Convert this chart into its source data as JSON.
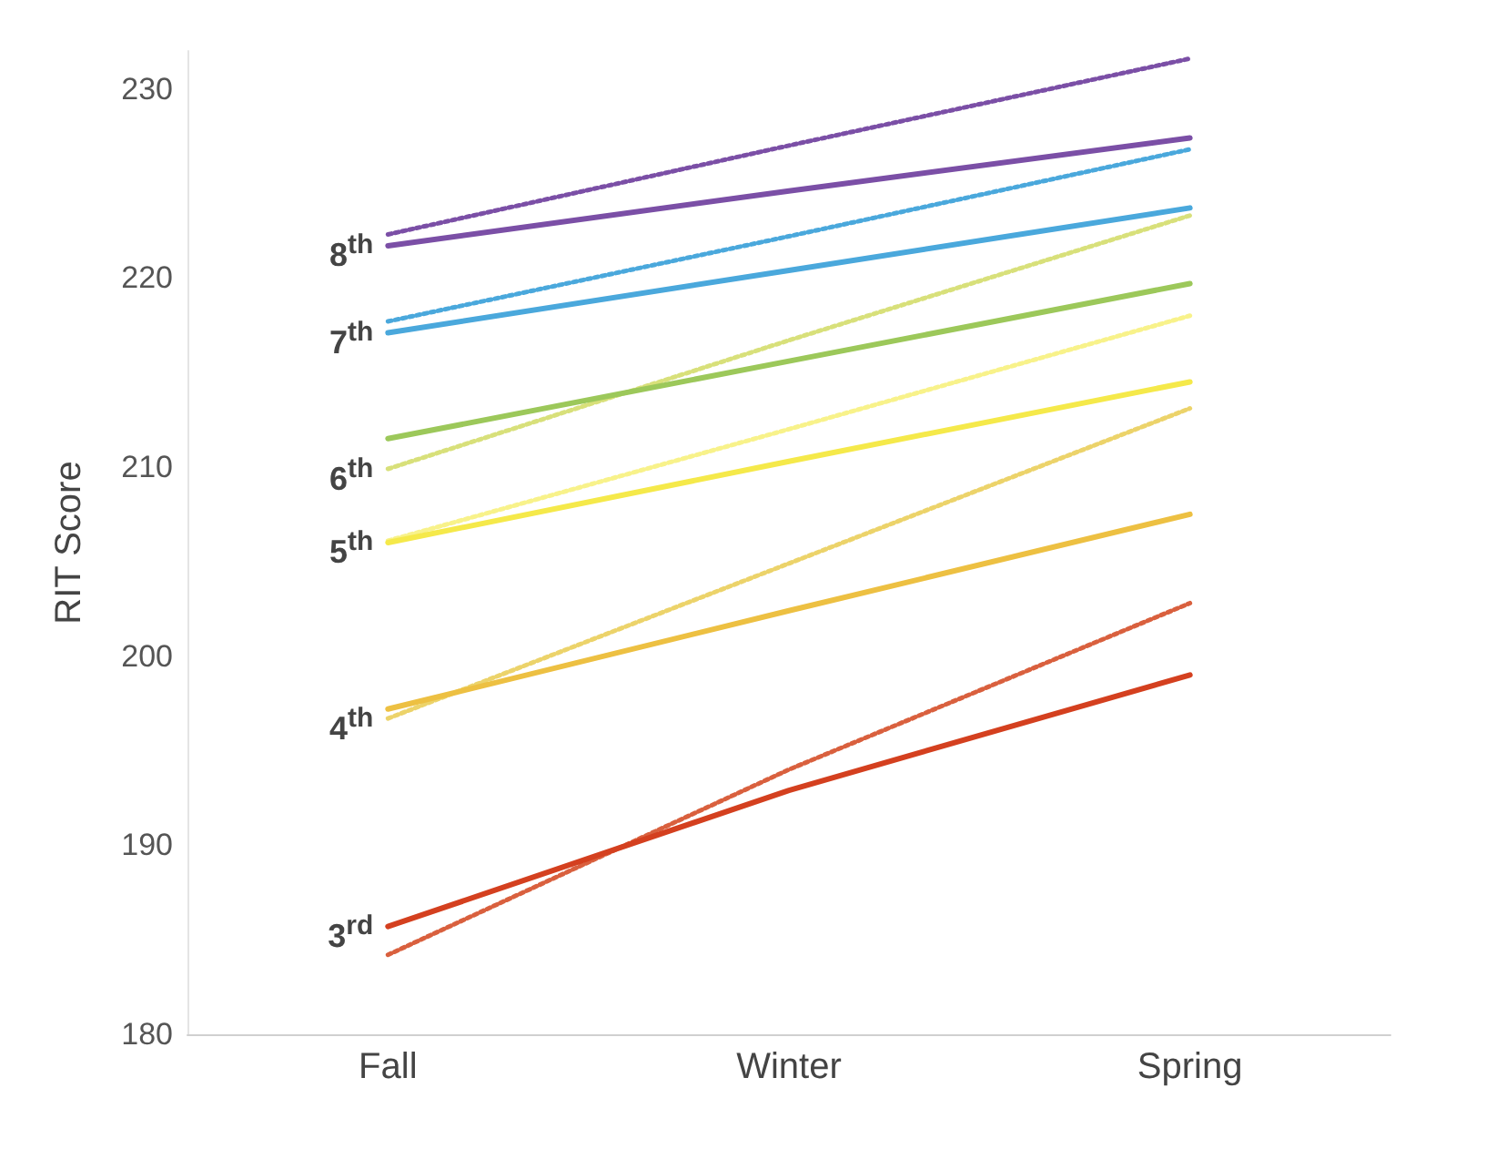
{
  "chart_data": {
    "type": "line",
    "ylabel": "RIT Score",
    "categories": [
      "Fall",
      "Winter",
      "Spring"
    ],
    "ylim": [
      180,
      232
    ],
    "yticks": [
      180,
      190,
      200,
      210,
      220,
      230
    ],
    "grid": false,
    "marker": "none",
    "series": [
      {
        "color": "#7b4fa6",
        "line_style": "dotted",
        "values": [
          222.3,
          227.0,
          231.6
        ]
      },
      {
        "color": "#7b4fa6",
        "line_style": "solid",
        "values": [
          221.7,
          224.6,
          227.4
        ]
      },
      {
        "color": "#4aa8dc",
        "line_style": "dotted",
        "values": [
          217.7,
          222.2,
          226.8
        ]
      },
      {
        "color": "#4aa8dc",
        "line_style": "solid",
        "values": [
          217.1,
          220.4,
          223.7
        ]
      },
      {
        "color": "#d8e07a",
        "line_style": "dotted",
        "values": [
          209.9,
          216.7,
          223.3
        ]
      },
      {
        "color": "#9cc85a",
        "line_style": "solid",
        "values": [
          211.5,
          215.6,
          219.7
        ]
      },
      {
        "color": "#f8f28a",
        "line_style": "dotted",
        "values": [
          206.1,
          212.0,
          218.0
        ]
      },
      {
        "color": "#f5e94a",
        "line_style": "solid",
        "values": [
          206.0,
          210.3,
          214.5
        ]
      },
      {
        "color": "#ecd36a",
        "line_style": "dotted",
        "values": [
          196.7,
          204.9,
          213.1
        ]
      },
      {
        "color": "#edc042",
        "line_style": "solid",
        "values": [
          197.2,
          202.4,
          207.5
        ]
      },
      {
        "color": "#d9603e",
        "line_style": "dotted",
        "values": [
          184.2,
          194.0,
          202.8
        ]
      },
      {
        "color": "#d4401f",
        "line_style": "solid",
        "values": [
          185.7,
          192.9,
          199.0
        ]
      }
    ],
    "annotations": [
      {
        "text": "8$^{th}$",
        "x": "Fall",
        "y": 221.7
      },
      {
        "text": "7$^{th}$",
        "x": "Fall",
        "y": 217.1
      },
      {
        "text": "6$^{th}$",
        "x": "Fall",
        "y": 209.9
      },
      {
        "text": "5$^{th}$",
        "x": "Fall",
        "y": 206.0
      },
      {
        "text": "4$^{th}$",
        "x": "Fall",
        "y": 196.7
      },
      {
        "text": "3$^{rd}$",
        "x": "Fall",
        "y": 185.7
      }
    ]
  }
}
